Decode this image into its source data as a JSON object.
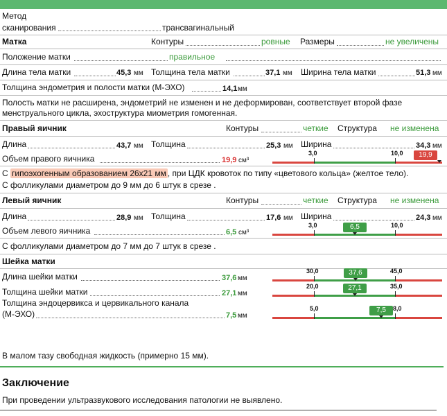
{
  "method": {
    "label1": "Метод",
    "label2": "сканирования",
    "value": "трансвагинальный"
  },
  "uterus": {
    "title": "Матка",
    "contour_label": "Контуры",
    "contour_value": "ровные",
    "size_label": "Размеры",
    "size_value": "не увеличены",
    "position_label": "Положение матки",
    "position_value": "правильное",
    "length_label": "Длина тела матки",
    "length_value": "45,3",
    "length_unit": "мм",
    "thickness_label": "Толщина тела матки",
    "thickness_value": "37,1",
    "thickness_unit": "мм",
    "width_label": "Ширина тела матки",
    "width_value": "51,3",
    "width_unit": "мм",
    "endometrium_label": "Толщина эндометрия и полости матки (М-ЭХО)",
    "endometrium_value": "14,1",
    "endometrium_unit": "мм",
    "note_line1": "Полость матки не расширена, эндометрий не изменен и не деформирован, соответствует  второй фазе",
    "note_line2": "менструального цикла, эхоструктура миометрия гомогенная."
  },
  "right_ovary": {
    "title": "Правый яичник",
    "contour_label": "Контуры",
    "contour_value": "четкие",
    "structure_label": "Структура",
    "structure_value": "не изменена",
    "length_label": "Длина",
    "length_value": "43,7",
    "length_unit": "мм",
    "thickness_label": "Толщина",
    "thickness_value": "25,3",
    "thickness_unit": "мм",
    "width_label": "Ширина",
    "width_value": "34,3",
    "width_unit": "мм",
    "volume_label": "Объем правого яичника",
    "volume_value": "19,9",
    "volume_unit": "см³",
    "gauge": {
      "min_label": "3,0",
      "max_label": "10,0",
      "badge": "19,9",
      "min": 3.0,
      "max": 10.0,
      "value": 19.9,
      "status": "high"
    },
    "note_prefix": "С ",
    "note_highlight": "гипоэхогенным образованием 26х21 мм",
    "note_suffix": ", при ЦДК кровоток по типу «цветового кольца» (желтое тело).",
    "note_line2": " С фолликулами диаметром до 9 мм до 6 штук в срезе ."
  },
  "left_ovary": {
    "title": "Левый яичник",
    "contour_label": "Контуры",
    "contour_value": "четкие",
    "structure_label": "Структура",
    "structure_value": "не изменена",
    "length_label": "Длина",
    "length_value": "28,9",
    "length_unit": "мм",
    "thickness_label": "Толщина",
    "thickness_value": "17,6",
    "thickness_unit": "мм",
    "width_label": "Ширина",
    "width_value": "24,3",
    "width_unit": "мм",
    "volume_label": "Объем левого яичника",
    "volume_value": "6,5",
    "volume_unit": "см³",
    "gauge": {
      "min_label": "3,0",
      "max_label": "10,0",
      "badge": "6,5",
      "min": 3.0,
      "max": 10.0,
      "value": 6.5,
      "status": "normal"
    },
    "note": "С фолликулами диаметром до 7 мм до 7 штук в срезе ."
  },
  "cervix": {
    "title": "Шейка матки",
    "length_label": "Длина шейки матки",
    "length_value": "37,6",
    "length_unit": "мм",
    "length_gauge": {
      "min_label": "30,0",
      "max_label": "45,0",
      "badge": "37,6",
      "min": 30.0,
      "max": 45.0,
      "value": 37.6,
      "status": "normal"
    },
    "thickness_label": "Толщина шейки матки",
    "thickness_value": "27,1",
    "thickness_unit": "мм",
    "thickness_gauge": {
      "min_label": "20,0",
      "max_label": "35,0",
      "badge": "27,1",
      "min": 20.0,
      "max": 35.0,
      "value": 27.1,
      "status": "normal"
    },
    "endocervix_label1": "Толщина эндоцервикса и цервикального канала",
    "endocervix_label2": "(М-ЭХО)",
    "endocervix_value": "7,5",
    "endocervix_unit": "мм",
    "endocervix_gauge": {
      "min_label": "5,0",
      "max_label": "8,0",
      "badge": "7,5",
      "min": 5.0,
      "max": 8.0,
      "value": 7.5,
      "status": "normal"
    }
  },
  "free_fluid": "В малом тазу свободная жидкость (примерно 15 мм).",
  "conclusion": {
    "title": "Заключение",
    "text": "При проведении ультразвукового исследования патологии не выявлено."
  }
}
